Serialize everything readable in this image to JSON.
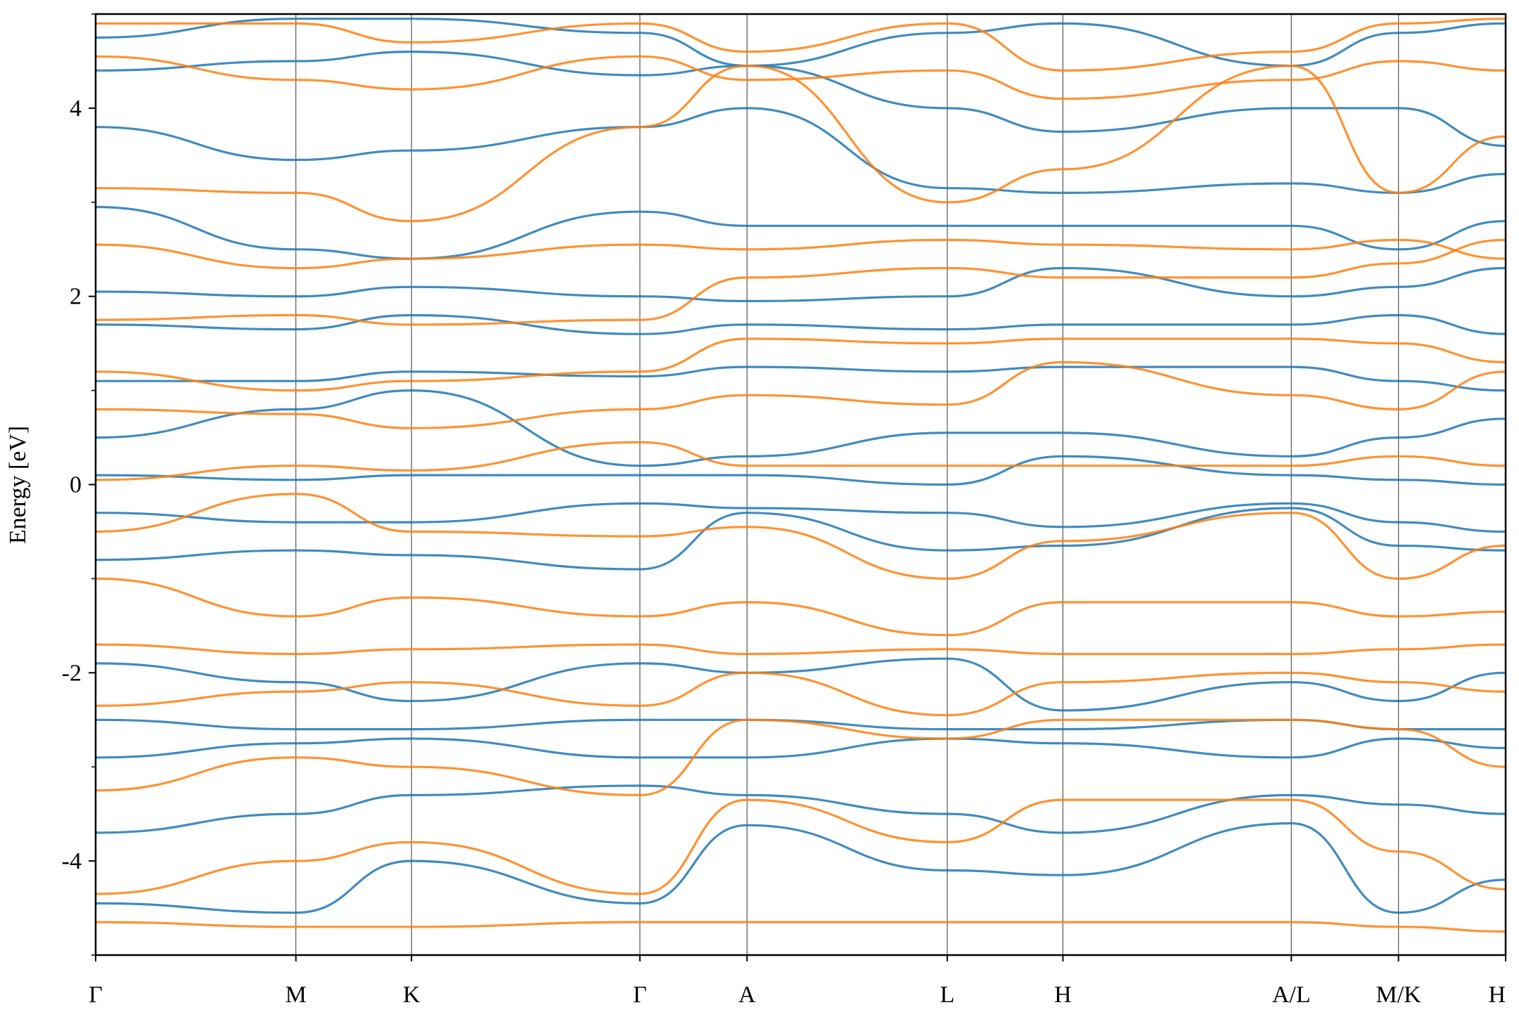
{
  "chart_data": {
    "type": "line",
    "title": "",
    "xlabel": "",
    "ylabel": "Energy [eV]",
    "ylim": [
      -5,
      5
    ],
    "y_ticks": [
      -4,
      -2,
      0,
      2,
      4
    ],
    "y_tick_labels": [
      "-4",
      "-2",
      "0",
      "2",
      "4"
    ],
    "x_range": [
      0,
      5.0
    ],
    "k_points": [
      {
        "label": "Γ",
        "x": 0.0
      },
      {
        "label": "M",
        "x": 0.71
      },
      {
        "label": "K",
        "x": 1.12
      },
      {
        "label": "Γ",
        "x": 1.93
      },
      {
        "label": "A",
        "x": 2.31
      },
      {
        "label": "L",
        "x": 3.02
      },
      {
        "label": "H",
        "x": 3.43
      },
      {
        "label": "A/L",
        "x": 4.24
      },
      {
        "label": "M/K",
        "x": 4.62
      },
      {
        "label": "H",
        "x": 5.0
      }
    ],
    "grid": "vertical lines at high-symmetry points",
    "series_colors": {
      "blue": "#1f77b4",
      "orange": "#ff7f0e"
    },
    "series": [
      {
        "color": "blue",
        "x": [
          0,
          0.71,
          1.12,
          1.93,
          2.31,
          3.02,
          3.43,
          4.24,
          4.62,
          5.0
        ],
        "values": [
          -4.45,
          -4.55,
          -4.0,
          -4.45,
          -3.62,
          -4.1,
          -4.15,
          -3.6,
          -4.55,
          -4.2
        ]
      },
      {
        "color": "blue",
        "x": [
          0,
          0.71,
          1.12,
          1.93,
          2.31,
          3.02,
          3.43,
          4.24,
          4.62,
          5.0
        ],
        "values": [
          -3.7,
          -3.5,
          -3.3,
          -3.2,
          -3.3,
          -3.5,
          -3.7,
          -3.3,
          -3.4,
          -3.5
        ]
      },
      {
        "color": "blue",
        "x": [
          0,
          0.71,
          1.12,
          1.93,
          2.31,
          3.02,
          3.43,
          4.24,
          4.62,
          5.0
        ],
        "values": [
          -2.9,
          -2.75,
          -2.7,
          -2.9,
          -2.9,
          -2.7,
          -2.75,
          -2.9,
          -2.7,
          -2.8
        ]
      },
      {
        "color": "blue",
        "x": [
          0,
          0.71,
          1.12,
          1.93,
          2.31,
          3.02,
          3.43,
          4.24,
          4.62,
          5.0
        ],
        "values": [
          -2.5,
          -2.6,
          -2.6,
          -2.5,
          -2.5,
          -2.6,
          -2.6,
          -2.5,
          -2.6,
          -2.6
        ]
      },
      {
        "color": "blue",
        "x": [
          0,
          0.71,
          1.12,
          1.93,
          2.31,
          3.02,
          3.43,
          4.24,
          4.62,
          5.0
        ],
        "values": [
          -1.9,
          -2.1,
          -2.3,
          -1.9,
          -2.0,
          -1.85,
          -2.4,
          -2.1,
          -2.3,
          -2.0
        ]
      },
      {
        "color": "blue",
        "x": [
          0,
          0.71,
          1.12,
          1.93,
          2.31,
          3.02,
          3.43,
          4.24,
          4.62,
          5.0
        ],
        "values": [
          -0.8,
          -0.7,
          -0.75,
          -0.9,
          -0.3,
          -0.7,
          -0.65,
          -0.25,
          -0.65,
          -0.7
        ]
      },
      {
        "color": "blue",
        "x": [
          0,
          0.71,
          1.12,
          1.93,
          2.31,
          3.02,
          3.43,
          4.24,
          4.62,
          5.0
        ],
        "values": [
          -0.3,
          -0.4,
          -0.4,
          -0.2,
          -0.25,
          -0.3,
          -0.45,
          -0.2,
          -0.4,
          -0.5
        ]
      },
      {
        "color": "blue",
        "x": [
          0,
          0.71,
          1.12,
          1.93,
          2.31,
          3.02,
          3.43,
          4.24,
          4.62,
          5.0
        ],
        "values": [
          0.1,
          0.05,
          0.1,
          0.1,
          0.1,
          0.0,
          0.3,
          0.1,
          0.05,
          0.0
        ]
      },
      {
        "color": "blue",
        "x": [
          0,
          0.71,
          1.12,
          1.93,
          2.31,
          3.02,
          3.43,
          4.24,
          4.62,
          5.0
        ],
        "values": [
          0.5,
          0.8,
          1.0,
          0.2,
          0.3,
          0.55,
          0.55,
          0.3,
          0.5,
          0.7
        ]
      },
      {
        "color": "blue",
        "x": [
          0,
          0.71,
          1.12,
          1.93,
          2.31,
          3.02,
          3.43,
          4.24,
          4.62,
          5.0
        ],
        "values": [
          1.1,
          1.1,
          1.2,
          1.15,
          1.25,
          1.2,
          1.25,
          1.25,
          1.1,
          1.0
        ]
      },
      {
        "color": "blue",
        "x": [
          0,
          0.71,
          1.12,
          1.93,
          2.31,
          3.02,
          3.43,
          4.24,
          4.62,
          5.0
        ],
        "values": [
          1.7,
          1.65,
          1.8,
          1.6,
          1.7,
          1.65,
          1.7,
          1.7,
          1.8,
          1.6
        ]
      },
      {
        "color": "blue",
        "x": [
          0,
          0.71,
          1.12,
          1.93,
          2.31,
          3.02,
          3.43,
          4.24,
          4.62,
          5.0
        ],
        "values": [
          2.05,
          2.0,
          2.1,
          2.0,
          1.95,
          2.0,
          2.3,
          2.0,
          2.1,
          2.3
        ]
      },
      {
        "color": "blue",
        "x": [
          0,
          0.71,
          1.12,
          1.93,
          2.31,
          3.02,
          3.43,
          4.24,
          4.62,
          5.0
        ],
        "values": [
          2.95,
          2.5,
          2.4,
          2.9,
          2.75,
          2.75,
          2.75,
          2.75,
          2.5,
          2.8
        ]
      },
      {
        "color": "blue",
        "x": [
          0,
          0.71,
          1.12,
          1.93,
          2.31,
          3.02,
          3.43,
          4.24,
          4.62,
          5.0
        ],
        "values": [
          3.8,
          3.45,
          3.55,
          3.8,
          4.0,
          3.15,
          3.1,
          3.2,
          3.1,
          3.3
        ]
      },
      {
        "color": "blue",
        "x": [
          0,
          0.71,
          1.12,
          1.93,
          2.31,
          3.02,
          3.43,
          4.24,
          4.62,
          5.0
        ],
        "values": [
          4.4,
          4.5,
          4.6,
          4.35,
          4.45,
          4.0,
          3.75,
          4.0,
          4.0,
          3.6
        ]
      },
      {
        "color": "blue",
        "x": [
          0,
          0.71,
          1.12,
          1.93,
          2.31,
          3.02,
          3.43,
          4.24,
          4.62,
          5.0
        ],
        "values": [
          4.75,
          4.95,
          4.95,
          4.8,
          4.45,
          4.8,
          4.9,
          4.45,
          4.8,
          4.9
        ]
      },
      {
        "color": "orange",
        "x": [
          0,
          0.71,
          1.12,
          1.93,
          2.31,
          3.02,
          3.43,
          4.24,
          4.62,
          5.0
        ],
        "values": [
          -4.65,
          -4.7,
          -4.7,
          -4.65,
          -4.65,
          -4.65,
          -4.65,
          -4.65,
          -4.7,
          -4.75
        ]
      },
      {
        "color": "orange",
        "x": [
          0,
          0.71,
          1.12,
          1.93,
          2.31,
          3.02,
          3.43,
          4.24,
          4.62,
          5.0
        ],
        "values": [
          -4.35,
          -4.0,
          -3.8,
          -4.35,
          -3.35,
          -3.8,
          -3.35,
          -3.35,
          -3.9,
          -4.3
        ]
      },
      {
        "color": "orange",
        "x": [
          0,
          0.71,
          1.12,
          1.93,
          2.31,
          3.02,
          3.43,
          4.24,
          4.62,
          5.0
        ],
        "values": [
          -3.25,
          -2.9,
          -3.0,
          -3.3,
          -2.5,
          -2.7,
          -2.5,
          -2.5,
          -2.6,
          -3.0
        ]
      },
      {
        "color": "orange",
        "x": [
          0,
          0.71,
          1.12,
          1.93,
          2.31,
          3.02,
          3.43,
          4.24,
          4.62,
          5.0
        ],
        "values": [
          -2.35,
          -2.2,
          -2.1,
          -2.35,
          -2.0,
          -2.45,
          -2.1,
          -2.0,
          -2.1,
          -2.2
        ]
      },
      {
        "color": "orange",
        "x": [
          0,
          0.71,
          1.12,
          1.93,
          2.31,
          3.02,
          3.43,
          4.24,
          4.62,
          5.0
        ],
        "values": [
          -1.7,
          -1.8,
          -1.75,
          -1.7,
          -1.8,
          -1.75,
          -1.8,
          -1.8,
          -1.75,
          -1.7
        ]
      },
      {
        "color": "orange",
        "x": [
          0,
          0.71,
          1.12,
          1.93,
          2.31,
          3.02,
          3.43,
          4.24,
          4.62,
          5.0
        ],
        "values": [
          -1.0,
          -1.4,
          -1.2,
          -1.4,
          -1.25,
          -1.6,
          -1.25,
          -1.25,
          -1.4,
          -1.35
        ]
      },
      {
        "color": "orange",
        "x": [
          0,
          0.71,
          1.12,
          1.93,
          2.31,
          3.02,
          3.43,
          4.24,
          4.62,
          5.0
        ],
        "values": [
          -0.5,
          -0.1,
          -0.5,
          -0.55,
          -0.45,
          -1.0,
          -0.6,
          -0.3,
          -1.0,
          -0.65
        ]
      },
      {
        "color": "orange",
        "x": [
          0,
          0.71,
          1.12,
          1.93,
          2.31,
          3.02,
          3.43,
          4.24,
          4.62,
          5.0
        ],
        "values": [
          0.05,
          0.2,
          0.15,
          0.45,
          0.2,
          0.2,
          0.2,
          0.2,
          0.3,
          0.2
        ]
      },
      {
        "color": "orange",
        "x": [
          0,
          0.71,
          1.12,
          1.93,
          2.31,
          3.02,
          3.43,
          4.24,
          4.62,
          5.0
        ],
        "values": [
          0.8,
          0.75,
          0.6,
          0.8,
          0.95,
          0.85,
          1.3,
          0.95,
          0.8,
          1.2
        ]
      },
      {
        "color": "orange",
        "x": [
          0,
          0.71,
          1.12,
          1.93,
          2.31,
          3.02,
          3.43,
          4.24,
          4.62,
          5.0
        ],
        "values": [
          1.2,
          1.0,
          1.1,
          1.2,
          1.55,
          1.5,
          1.55,
          1.55,
          1.5,
          1.3
        ]
      },
      {
        "color": "orange",
        "x": [
          0,
          0.71,
          1.12,
          1.93,
          2.31,
          3.02,
          3.43,
          4.24,
          4.62,
          5.0
        ],
        "values": [
          1.75,
          1.8,
          1.7,
          1.75,
          2.2,
          2.3,
          2.2,
          2.2,
          2.35,
          2.6
        ]
      },
      {
        "color": "orange",
        "x": [
          0,
          0.71,
          1.12,
          1.93,
          2.31,
          3.02,
          3.43,
          4.24,
          4.62,
          5.0
        ],
        "values": [
          2.55,
          2.3,
          2.4,
          2.55,
          2.5,
          2.6,
          2.55,
          2.5,
          2.6,
          2.4
        ]
      },
      {
        "color": "orange",
        "x": [
          0,
          0.71,
          1.12,
          1.93,
          2.31,
          3.02,
          3.43,
          4.24,
          4.62,
          5.0
        ],
        "values": [
          3.15,
          3.1,
          2.8,
          3.8,
          4.45,
          3.0,
          3.35,
          4.45,
          3.1,
          3.7
        ]
      },
      {
        "color": "orange",
        "x": [
          0,
          0.71,
          1.12,
          1.93,
          2.31,
          3.02,
          3.43,
          4.24,
          4.62,
          5.0
        ],
        "values": [
          4.55,
          4.3,
          4.2,
          4.55,
          4.3,
          4.4,
          4.1,
          4.3,
          4.5,
          4.4
        ]
      },
      {
        "color": "orange",
        "x": [
          0,
          0.71,
          1.12,
          1.93,
          2.31,
          3.02,
          3.43,
          4.24,
          4.62,
          5.0
        ],
        "values": [
          4.9,
          4.9,
          4.7,
          4.9,
          4.6,
          4.9,
          4.4,
          4.6,
          4.9,
          4.95
        ]
      }
    ]
  }
}
